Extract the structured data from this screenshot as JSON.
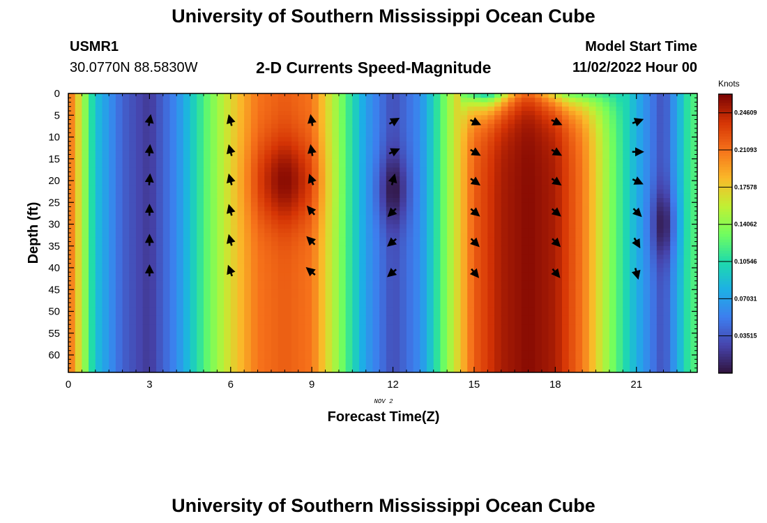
{
  "page": {
    "title": "University of Southern Mississippi Ocean Cube",
    "title_repeat": "University of Southern Mississippi Ocean Cube",
    "station_id": "USMR1",
    "coords": "30.0770N  88.5830W",
    "subtitle": "2-D Currents Speed-Magnitude",
    "model_start_label": "Model Start Time",
    "model_start_value": "11/02/2022 Hour 00"
  },
  "chart_data": {
    "type": "heatmap",
    "xlabel": "Forecast Time(Z)",
    "ylabel": "Depth (ft)",
    "date_label": "NOV 2",
    "xlim": [
      0,
      23.25
    ],
    "ylim": [
      0,
      64
    ],
    "x_ticks": [
      0,
      3,
      6,
      9,
      12,
      15,
      18,
      21
    ],
    "y_ticks": [
      0,
      5,
      10,
      15,
      20,
      25,
      30,
      35,
      40,
      45,
      50,
      55,
      60
    ],
    "colorbar": {
      "unit": "Knots",
      "min": 0.0,
      "max": 0.2637,
      "tick_values": [
        0.03515,
        0.07031,
        0.10546,
        0.14062,
        0.17578,
        0.21093,
        0.24609
      ],
      "tick_labels": [
        "0.03515",
        "0.07031",
        "0.10546",
        "0.14062",
        "0.17578",
        "0.21093",
        "0.24609"
      ]
    },
    "hours": [
      0,
      1,
      2,
      3,
      4,
      5,
      6,
      7,
      8,
      9,
      10,
      11,
      12,
      13,
      14,
      15,
      16,
      17,
      18,
      19,
      20,
      21,
      22,
      23
    ],
    "speed_profile_knots": [
      0.22,
      0.09,
      0.04,
      0.02,
      0.06,
      0.12,
      0.17,
      0.21,
      0.22,
      0.21,
      0.14,
      0.07,
      0.03,
      0.06,
      0.14,
      0.22,
      0.25,
      0.26,
      0.25,
      0.21,
      0.14,
      0.08,
      0.03,
      0.12
    ],
    "depth_levels_ft": [
      6.5,
      13.4,
      20.1,
      27.1,
      34.0,
      41.0
    ],
    "arrow_hours": [
      3,
      6,
      9,
      12,
      15,
      18,
      21
    ],
    "arrow_direction_deg": [
      [
        10,
        -15,
        -10,
        60,
        115,
        115,
        70
      ],
      [
        5,
        -15,
        -10,
        65,
        120,
        120,
        90
      ],
      [
        5,
        -15,
        -20,
        15,
        125,
        125,
        115
      ],
      [
        0,
        -15,
        -40,
        225,
        130,
        130,
        135
      ],
      [
        0,
        -15,
        -45,
        230,
        135,
        135,
        150
      ],
      [
        0,
        -20,
        -50,
        230,
        140,
        140,
        165
      ]
    ]
  }
}
